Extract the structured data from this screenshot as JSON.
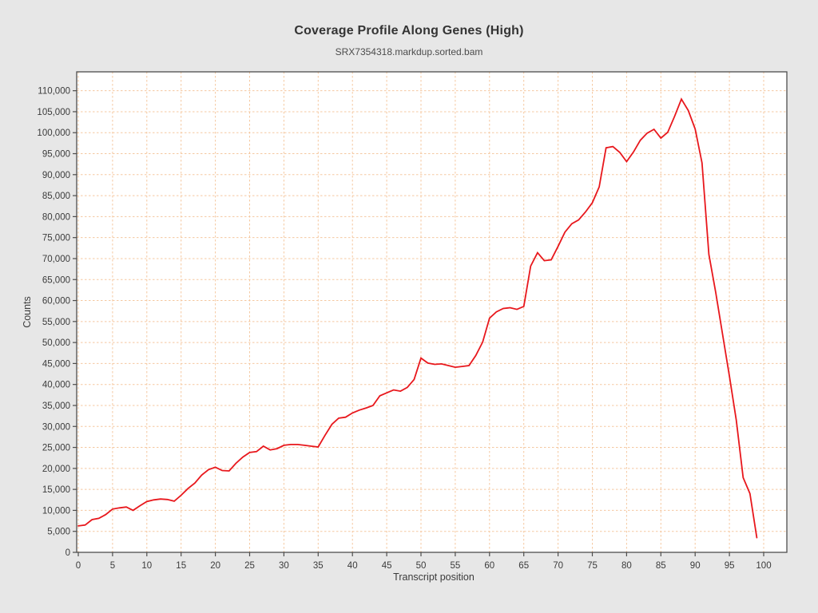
{
  "header": {
    "title": "Coverage Profile Along Genes (High)",
    "subtitle": "SRX7354318.markdup.sorted.bam"
  },
  "chart_data": {
    "type": "line",
    "title": "Coverage Profile Along Genes (High)",
    "subtitle": "SRX7354318.markdup.sorted.bam",
    "xlabel": "Transcript position",
    "ylabel": "Counts",
    "x_start": 0,
    "x_step": 1,
    "series": [
      {
        "name": "SRX7354318.markdup.sorted.bam",
        "values": [
          6300,
          6500,
          7800,
          8100,
          9000,
          10300,
          10600,
          10800,
          10000,
          11100,
          12100,
          12500,
          12700,
          12600,
          12200,
          13600,
          15200,
          16500,
          18400,
          19700,
          20300,
          19500,
          19400,
          21200,
          22700,
          23800,
          24000,
          25300,
          24400,
          24700,
          25500,
          25700,
          25700,
          25500,
          25300,
          25100,
          27900,
          30500,
          32000,
          32200,
          33200,
          33900,
          34400,
          35000,
          37300,
          38000,
          38700,
          38400,
          39300,
          41200,
          46300,
          45100,
          44800,
          44900,
          44500,
          44100,
          44300,
          44500,
          46900,
          50100,
          55800,
          57300,
          58100,
          58300,
          57900,
          58600,
          68200,
          71400,
          69500,
          69700,
          72900,
          76300,
          78300,
          79200,
          81100,
          83300,
          87100,
          96400,
          96700,
          95300,
          93100,
          95400,
          98200,
          99900,
          100800,
          98700,
          100100,
          103900,
          108000,
          105300,
          100900,
          92800,
          71000,
          62000,
          52000,
          42000,
          31500,
          17800,
          14000,
          3500
        ]
      }
    ],
    "xticks": [
      0,
      5,
      10,
      15,
      20,
      25,
      30,
      35,
      40,
      45,
      50,
      55,
      60,
      65,
      70,
      75,
      80,
      85,
      90,
      95,
      100
    ],
    "yticks": [
      0,
      5000,
      10000,
      15000,
      20000,
      25000,
      30000,
      35000,
      40000,
      45000,
      50000,
      55000,
      60000,
      65000,
      70000,
      75000,
      80000,
      85000,
      90000,
      95000,
      100000,
      105000,
      110000
    ],
    "xlim": [
      -0.25,
      103.4
    ],
    "ylim": [
      0,
      114500
    ],
    "grid": true,
    "grid_style": "dashed",
    "legend": "none",
    "colors": {
      "line": "#e8171c",
      "grid": "#f5c8a0",
      "plot_border": "#4d4d4d",
      "tick_text": "#3b3b3b",
      "background": "#e7e7e7",
      "plot_background": "#ffffff"
    }
  }
}
